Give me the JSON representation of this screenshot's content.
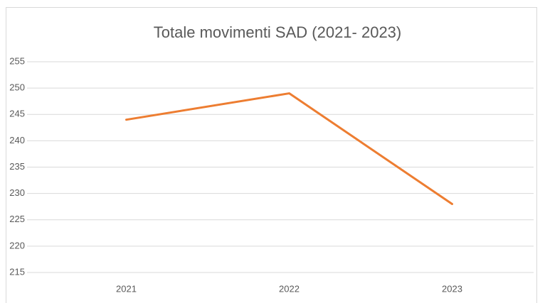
{
  "chart_data": {
    "type": "line",
    "title": "Totale movimenti SAD (2021- 2023)",
    "categories": [
      "2021",
      "2022",
      "2023"
    ],
    "series": [
      {
        "name": "Totale movimenti SAD",
        "color": "#ed7d31",
        "values": [
          244,
          249,
          228
        ]
      }
    ],
    "ylim": [
      215,
      255
    ],
    "yticks": [
      215,
      220,
      225,
      230,
      235,
      240,
      245,
      250,
      255
    ],
    "grid": true,
    "legend": false
  }
}
